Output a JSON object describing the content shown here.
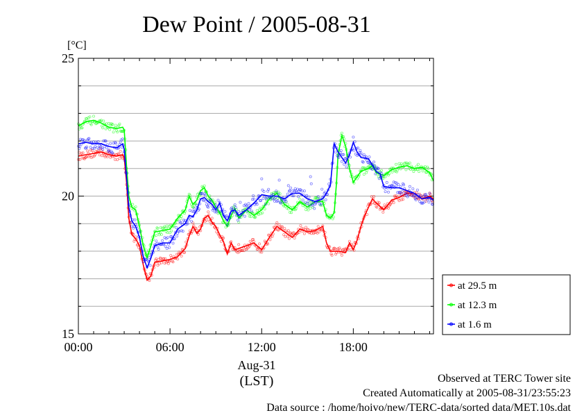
{
  "chart_data": {
    "type": "line",
    "title": "Dew Point / 2005-08-31",
    "yunit": "[°C]",
    "ylim": [
      15,
      25
    ],
    "yticks": [
      15,
      20,
      25
    ],
    "xlim": [
      0,
      23.25
    ],
    "xticks": [
      {
        "h": 0,
        "label": "00:00"
      },
      {
        "h": 6,
        "label": "06:00"
      },
      {
        "h": 12,
        "label": "12:00"
      },
      {
        "h": 18,
        "label": "18:00"
      }
    ],
    "date_label": "Aug-31",
    "time_zone_label": "(LST)",
    "grid": true,
    "legend_position": "right-bottom",
    "series": [
      {
        "name": "at 29.5 m",
        "color": "#ff0000",
        "points": [
          [
            0.0,
            21.45
          ],
          [
            0.5,
            21.5
          ],
          [
            1.0,
            21.55
          ],
          [
            1.5,
            21.6
          ],
          [
            2.0,
            21.5
          ],
          [
            2.5,
            21.45
          ],
          [
            2.9,
            21.5
          ],
          [
            3.0,
            21.4
          ],
          [
            3.15,
            20.5
          ],
          [
            3.3,
            19.2
          ],
          [
            3.5,
            18.6
          ],
          [
            3.75,
            18.45
          ],
          [
            4.0,
            18.2
          ],
          [
            4.25,
            17.5
          ],
          [
            4.5,
            16.95
          ],
          [
            4.75,
            17.1
          ],
          [
            5.0,
            17.6
          ],
          [
            5.5,
            17.65
          ],
          [
            6.0,
            17.7
          ],
          [
            6.5,
            17.8
          ],
          [
            7.0,
            18.1
          ],
          [
            7.25,
            18.55
          ],
          [
            7.5,
            18.9
          ],
          [
            7.75,
            18.65
          ],
          [
            8.0,
            18.8
          ],
          [
            8.25,
            19.2
          ],
          [
            8.5,
            19.3
          ],
          [
            8.75,
            19.05
          ],
          [
            9.0,
            18.9
          ],
          [
            9.25,
            18.6
          ],
          [
            9.5,
            18.35
          ],
          [
            9.75,
            17.9
          ],
          [
            10.0,
            18.3
          ],
          [
            10.25,
            18.05
          ],
          [
            10.5,
            18.1
          ],
          [
            11.0,
            18.2
          ],
          [
            11.5,
            18.3
          ],
          [
            12.0,
            18.05
          ],
          [
            12.5,
            18.5
          ],
          [
            13.0,
            18.9
          ],
          [
            13.5,
            18.7
          ],
          [
            14.0,
            18.5
          ],
          [
            14.5,
            18.8
          ],
          [
            15.0,
            18.7
          ],
          [
            15.5,
            18.75
          ],
          [
            16.0,
            18.9
          ],
          [
            16.25,
            18.3
          ],
          [
            16.5,
            18.0
          ],
          [
            17.0,
            18.0
          ],
          [
            17.5,
            17.95
          ],
          [
            17.75,
            18.3
          ],
          [
            18.0,
            18.05
          ],
          [
            18.25,
            18.4
          ],
          [
            18.5,
            18.9
          ],
          [
            18.75,
            19.3
          ],
          [
            19.0,
            19.6
          ],
          [
            19.25,
            19.9
          ],
          [
            19.5,
            19.75
          ],
          [
            20.0,
            19.5
          ],
          [
            20.5,
            19.85
          ],
          [
            21.0,
            19.95
          ],
          [
            21.5,
            20.1
          ],
          [
            22.0,
            20.1
          ],
          [
            22.5,
            19.9
          ],
          [
            23.0,
            20.0
          ],
          [
            23.25,
            19.9
          ]
        ]
      },
      {
        "name": "at 12.3 m",
        "color": "#00ff00",
        "points": [
          [
            0.0,
            22.55
          ],
          [
            0.5,
            22.7
          ],
          [
            1.0,
            22.75
          ],
          [
            1.5,
            22.65
          ],
          [
            2.0,
            22.5
          ],
          [
            2.5,
            22.45
          ],
          [
            2.9,
            22.5
          ],
          [
            3.0,
            22.4
          ],
          [
            3.15,
            21.1
          ],
          [
            3.3,
            20.0
          ],
          [
            3.5,
            19.6
          ],
          [
            3.75,
            19.5
          ],
          [
            4.0,
            18.9
          ],
          [
            4.25,
            18.2
          ],
          [
            4.5,
            17.75
          ],
          [
            4.75,
            18.2
          ],
          [
            5.0,
            18.7
          ],
          [
            5.5,
            18.75
          ],
          [
            6.0,
            18.8
          ],
          [
            6.5,
            19.2
          ],
          [
            7.0,
            19.5
          ],
          [
            7.25,
            20.0
          ],
          [
            7.5,
            19.7
          ],
          [
            7.75,
            19.85
          ],
          [
            8.0,
            20.2
          ],
          [
            8.25,
            20.3
          ],
          [
            8.5,
            20.0
          ],
          [
            8.75,
            19.85
          ],
          [
            9.0,
            19.6
          ],
          [
            9.25,
            19.4
          ],
          [
            9.5,
            19.1
          ],
          [
            9.75,
            18.9
          ],
          [
            10.0,
            19.3
          ],
          [
            10.25,
            19.55
          ],
          [
            10.5,
            19.2
          ],
          [
            11.0,
            19.5
          ],
          [
            11.5,
            19.3
          ],
          [
            12.0,
            19.5
          ],
          [
            12.5,
            19.9
          ],
          [
            13.0,
            20.1
          ],
          [
            13.5,
            19.7
          ],
          [
            14.0,
            19.5
          ],
          [
            14.5,
            19.8
          ],
          [
            15.0,
            19.6
          ],
          [
            15.5,
            19.8
          ],
          [
            16.0,
            19.8
          ],
          [
            16.25,
            19.3
          ],
          [
            16.5,
            19.2
          ],
          [
            16.75,
            19.4
          ],
          [
            16.9,
            20.5
          ],
          [
            17.0,
            21.5
          ],
          [
            17.25,
            22.2
          ],
          [
            17.5,
            21.8
          ],
          [
            17.75,
            21.0
          ],
          [
            18.0,
            20.5
          ],
          [
            18.5,
            20.9
          ],
          [
            19.0,
            21.0
          ],
          [
            19.25,
            21.1
          ],
          [
            19.5,
            20.85
          ],
          [
            20.0,
            20.75
          ],
          [
            20.5,
            20.95
          ],
          [
            21.0,
            21.05
          ],
          [
            21.5,
            21.1
          ],
          [
            22.0,
            21.0
          ],
          [
            22.5,
            21.05
          ],
          [
            23.0,
            20.85
          ],
          [
            23.25,
            20.55
          ]
        ]
      },
      {
        "name": "at 1.6 m",
        "color": "#0000ff",
        "points": [
          [
            0.0,
            21.9
          ],
          [
            0.5,
            21.95
          ],
          [
            1.0,
            21.9
          ],
          [
            1.5,
            21.9
          ],
          [
            2.0,
            21.8
          ],
          [
            2.5,
            21.75
          ],
          [
            2.9,
            21.9
          ],
          [
            3.0,
            21.7
          ],
          [
            3.15,
            20.7
          ],
          [
            3.3,
            19.6
          ],
          [
            3.5,
            19.1
          ],
          [
            3.75,
            18.9
          ],
          [
            4.0,
            18.5
          ],
          [
            4.25,
            17.8
          ],
          [
            4.5,
            17.4
          ],
          [
            4.75,
            17.75
          ],
          [
            5.0,
            18.2
          ],
          [
            5.5,
            18.3
          ],
          [
            6.0,
            18.3
          ],
          [
            6.5,
            18.8
          ],
          [
            7.0,
            19.0
          ],
          [
            7.25,
            19.3
          ],
          [
            7.5,
            19.25
          ],
          [
            7.75,
            19.5
          ],
          [
            8.0,
            19.9
          ],
          [
            8.25,
            19.95
          ],
          [
            8.5,
            19.8
          ],
          [
            8.75,
            19.7
          ],
          [
            9.0,
            19.5
          ],
          [
            9.25,
            19.75
          ],
          [
            9.5,
            19.3
          ],
          [
            9.75,
            19.1
          ],
          [
            10.0,
            19.45
          ],
          [
            10.25,
            19.5
          ],
          [
            10.5,
            19.3
          ],
          [
            11.0,
            19.5
          ],
          [
            11.5,
            19.75
          ],
          [
            12.0,
            20.05
          ],
          [
            12.5,
            20.0
          ],
          [
            13.0,
            20.0
          ],
          [
            13.5,
            19.9
          ],
          [
            14.0,
            20.1
          ],
          [
            14.5,
            20.1
          ],
          [
            15.0,
            19.9
          ],
          [
            15.5,
            19.8
          ],
          [
            16.0,
            19.9
          ],
          [
            16.25,
            20.1
          ],
          [
            16.5,
            20.4
          ],
          [
            16.75,
            21.9
          ],
          [
            17.0,
            21.6
          ],
          [
            17.25,
            21.4
          ],
          [
            17.5,
            21.2
          ],
          [
            17.75,
            21.5
          ],
          [
            18.0,
            21.95
          ],
          [
            18.25,
            21.6
          ],
          [
            18.5,
            21.4
          ],
          [
            19.0,
            21.35
          ],
          [
            19.5,
            20.9
          ],
          [
            19.75,
            20.8
          ],
          [
            20.0,
            20.35
          ],
          [
            20.5,
            20.3
          ],
          [
            21.0,
            20.3
          ],
          [
            21.5,
            20.2
          ],
          [
            22.0,
            20.1
          ],
          [
            22.5,
            19.9
          ],
          [
            23.0,
            19.95
          ],
          [
            23.25,
            19.85
          ]
        ]
      }
    ]
  },
  "footer": {
    "line1": "Observed at TERC Tower site",
    "line2": "Created Automatically at 2005-08-31/23:55:23",
    "line3": "Data source : /home/hoivo/new/TERC-data/sorted  data/MET.10s.dat"
  }
}
